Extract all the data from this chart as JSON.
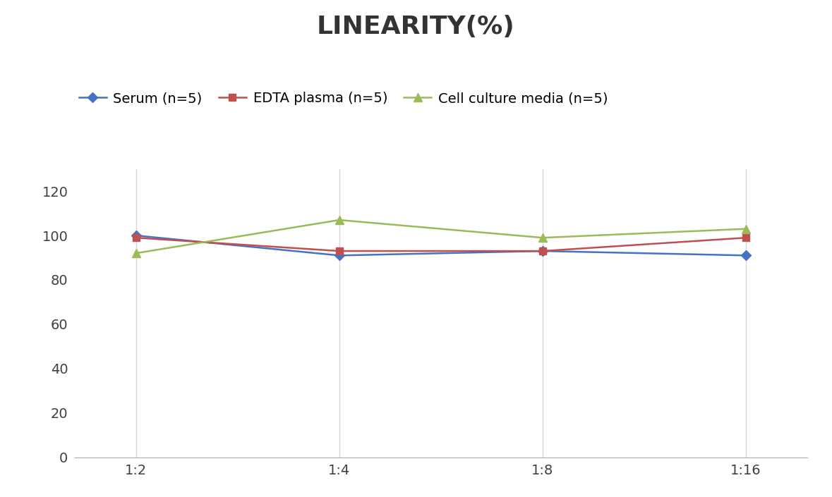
{
  "title": "LINEARITY(%)",
  "x_labels": [
    "1:2",
    "1:4",
    "1:8",
    "1:16"
  ],
  "x_positions": [
    0,
    1,
    2,
    3
  ],
  "series": [
    {
      "label": "Serum (n=5)",
      "values": [
        100,
        91,
        93,
        91
      ],
      "color": "#4472C4",
      "marker": "D",
      "marker_size": 7,
      "linewidth": 1.8
    },
    {
      "label": "EDTA plasma (n=5)",
      "values": [
        99,
        93,
        93,
        99
      ],
      "color": "#C0504D",
      "marker": "s",
      "marker_size": 7,
      "linewidth": 1.8
    },
    {
      "label": "Cell culture media (n=5)",
      "values": [
        92,
        107,
        99,
        103
      ],
      "color": "#9BBB59",
      "marker": "^",
      "marker_size": 8,
      "linewidth": 1.8
    }
  ],
  "ylim": [
    0,
    130
  ],
  "yticks": [
    0,
    20,
    40,
    60,
    80,
    100,
    120
  ],
  "title_fontsize": 26,
  "tick_fontsize": 14,
  "legend_fontsize": 14,
  "grid_color": "#D9D9D9",
  "background_color": "#FFFFFF"
}
